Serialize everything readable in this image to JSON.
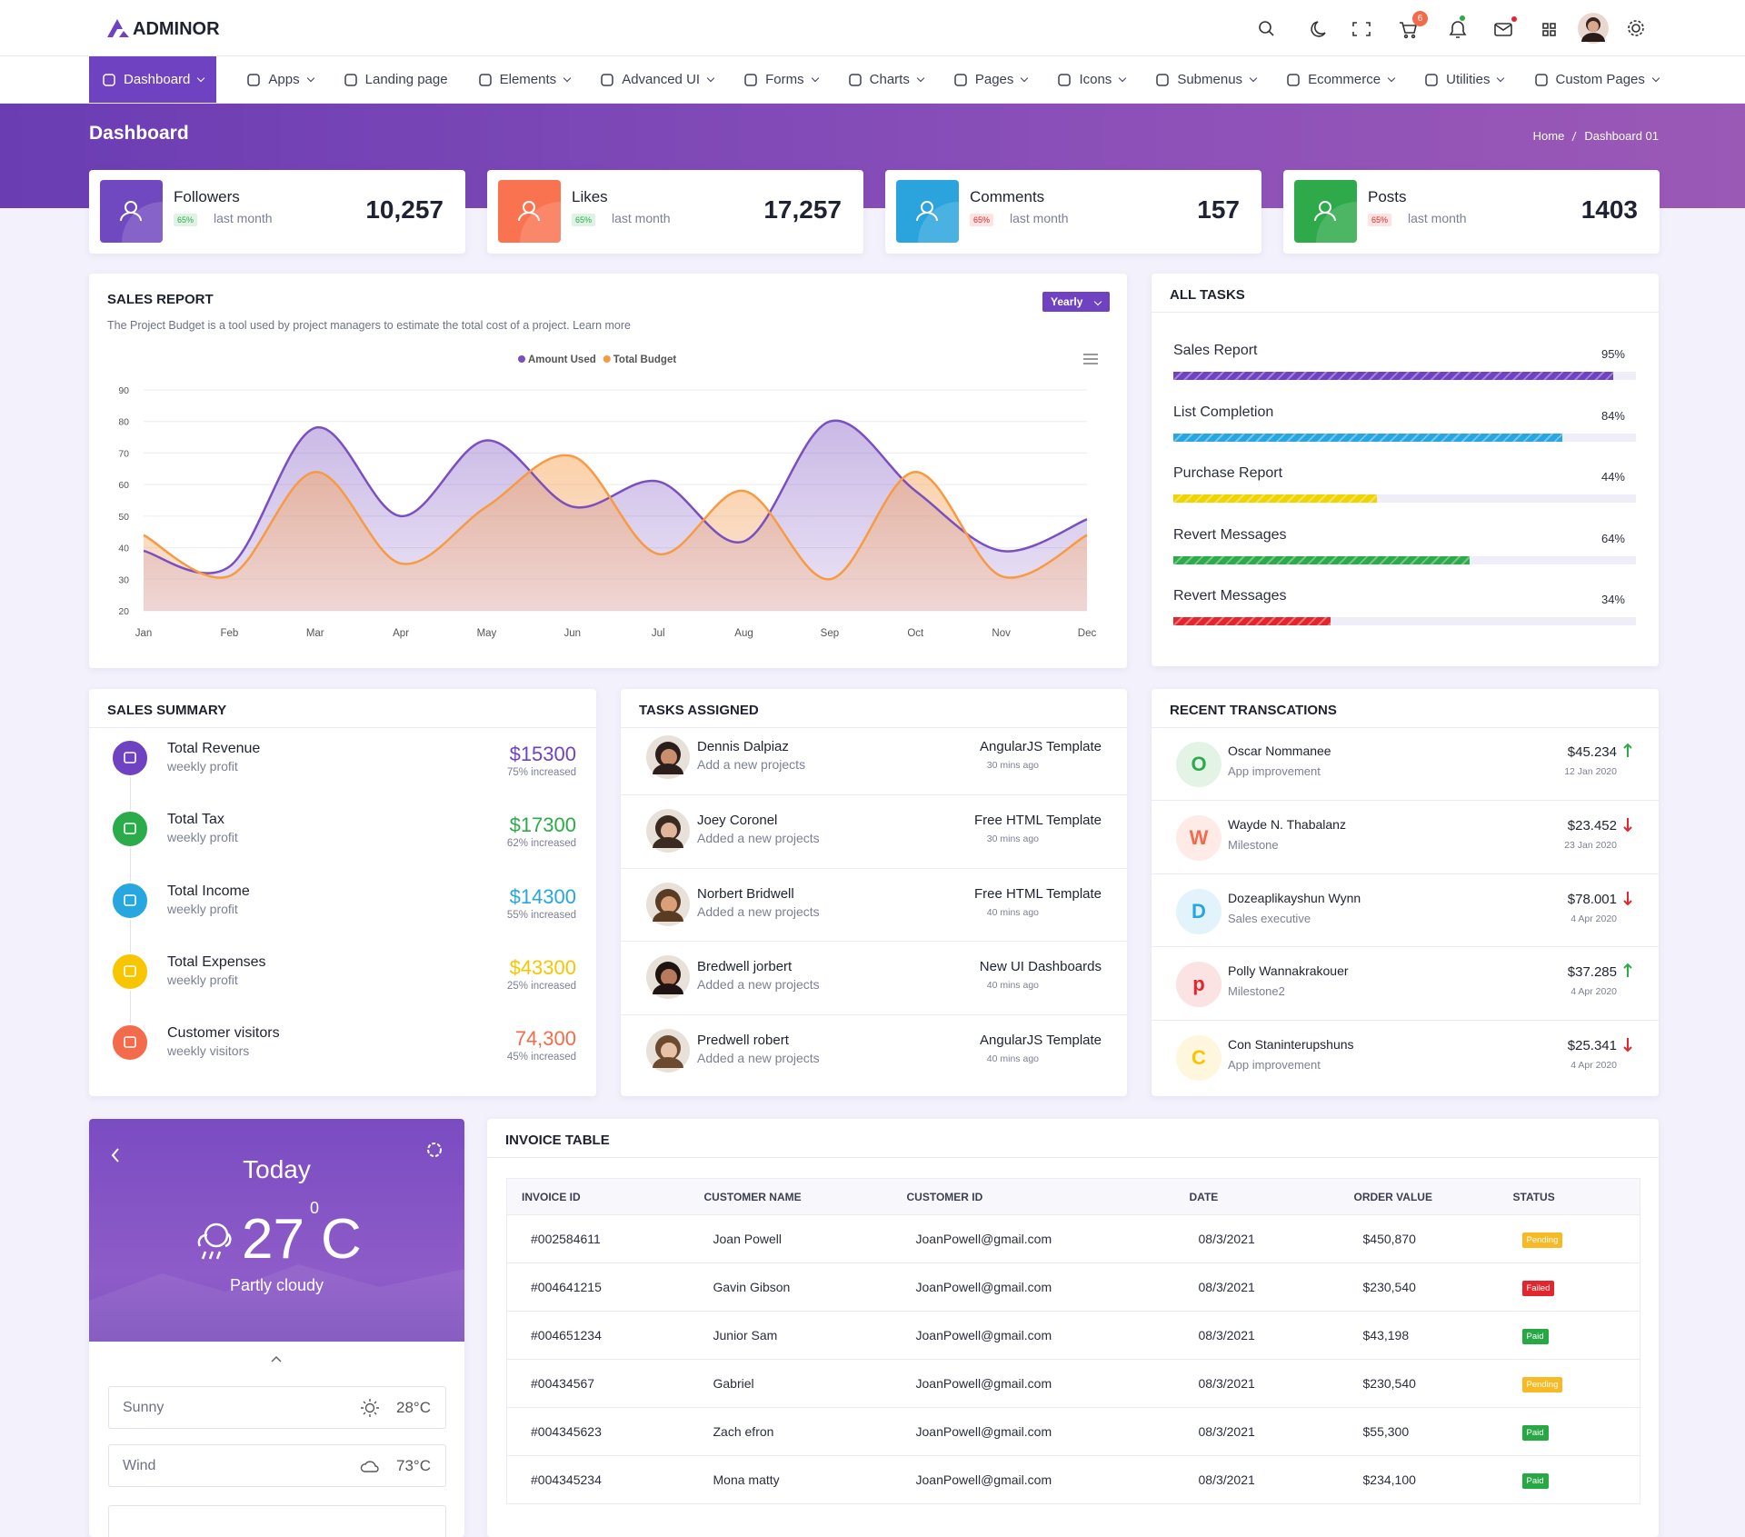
{
  "header": {
    "brand": "ADMINOR",
    "cart_badge": "6"
  },
  "nav": [
    {
      "label": "Dashboard",
      "dropdown": true,
      "active": true
    },
    {
      "label": "Apps",
      "dropdown": true
    },
    {
      "label": "Landing page",
      "dropdown": false
    },
    {
      "label": "Elements",
      "dropdown": true
    },
    {
      "label": "Advanced UI",
      "dropdown": true
    },
    {
      "label": "Forms",
      "dropdown": true
    },
    {
      "label": "Charts",
      "dropdown": true
    },
    {
      "label": "Pages",
      "dropdown": true
    },
    {
      "label": "Icons",
      "dropdown": true
    },
    {
      "label": "Submenus",
      "dropdown": true
    },
    {
      "label": "Ecommerce",
      "dropdown": true
    },
    {
      "label": "Utilities",
      "dropdown": true
    },
    {
      "label": "Custom Pages",
      "dropdown": true
    }
  ],
  "page": {
    "title": "Dashboard",
    "breadcrumb": [
      "Home",
      "Dashboard 01"
    ]
  },
  "stats": [
    {
      "label": "Followers",
      "badge": "65%",
      "badge_tone": "success",
      "period": "last month",
      "value": "10,257",
      "color": "#7048bf"
    },
    {
      "label": "Likes",
      "badge": "65%",
      "badge_tone": "success",
      "period": "last month",
      "value": "17,257",
      "color": "#f97350"
    },
    {
      "label": "Comments",
      "badge": "65%",
      "badge_tone": "danger",
      "period": "last month",
      "value": "157",
      "color": "#2ba4de"
    },
    {
      "label": "Posts",
      "badge": "65%",
      "badge_tone": "danger",
      "period": "last month",
      "value": "1403",
      "color": "#2eaa4b"
    }
  ],
  "sales_filter": "Yearly",
  "chart_data": {
    "type": "area",
    "title": "SALES REPORT",
    "subtitle": "The Project Budget is a tool used by project managers to estimate the total cost of a project. Learn more",
    "categories": [
      "Jan",
      "Feb",
      "Mar",
      "Apr",
      "May",
      "Jun",
      "Jul",
      "Aug",
      "Sep",
      "Oct",
      "Nov",
      "Dec"
    ],
    "series": [
      {
        "name": "Amount Used",
        "color": "#7a4fbf",
        "values": [
          39,
          34,
          78,
          50,
          74,
          53,
          61,
          42,
          80,
          58,
          39,
          49
        ]
      },
      {
        "name": "Total Budget",
        "color": "#f79b42",
        "values": [
          44,
          31,
          64,
          35,
          53,
          69,
          38,
          58,
          30,
          64,
          31,
          44
        ]
      }
    ],
    "ylim": [
      20,
      90
    ],
    "yticks": [
      20,
      30,
      40,
      50,
      60,
      70,
      80,
      90
    ],
    "grid": true
  },
  "tasks": {
    "title": "ALL TASKS",
    "items": [
      {
        "label": "Sales Report",
        "value": 95,
        "value_label": "95%",
        "color": "#6f42c1"
      },
      {
        "label": "List Completion",
        "value": 84,
        "value_label": "84%",
        "color": "#27a6e0"
      },
      {
        "label": "Purchase Report",
        "value": 44,
        "value_label": "44%",
        "color": "#f0d400"
      },
      {
        "label": "Revert Messages",
        "value": 64,
        "value_label": "64%",
        "color": "#2cab4b"
      },
      {
        "label": "Revert Messages",
        "value": 34,
        "value_label": "34%",
        "color": "#e3262d"
      }
    ]
  },
  "summary": {
    "title": "SALES SUMMARY",
    "items": [
      {
        "label": "Total Revenue",
        "sub": "weekly profit",
        "value": "$15300",
        "note": "75% increased",
        "color": "#6f42c1"
      },
      {
        "label": "Total Tax",
        "sub": "weekly profit",
        "value": "$17300",
        "note": "62% increased",
        "color": "#2cab4b"
      },
      {
        "label": "Total Income",
        "sub": "weekly profit",
        "value": "$14300",
        "note": "55% increased",
        "color": "#27a6e0"
      },
      {
        "label": "Total Expenses",
        "sub": "weekly profit",
        "value": "$43300",
        "note": "25% increased",
        "color": "#f7c600"
      },
      {
        "label": "Customer visitors",
        "sub": "weekly visitors",
        "value": "74,300",
        "note": "45% increased",
        "color": "#f46b4c"
      }
    ]
  },
  "assigned": {
    "title": "TASKS ASSIGNED",
    "items": [
      {
        "name": "Dennis Dalpiaz",
        "action": "Add a new projects",
        "project": "AngularJS Template",
        "time": "30 mins ago"
      },
      {
        "name": "Joey Coronel",
        "action": "Added a new projects",
        "project": "Free HTML Template",
        "time": "30 mins ago"
      },
      {
        "name": "Norbert Bridwell",
        "action": "Added a new projects",
        "project": "Free HTML Template",
        "time": "40 mins ago"
      },
      {
        "name": "Bredwell jorbert",
        "action": "Added a new projects",
        "project": "New UI Dashboards",
        "time": "40 mins ago"
      },
      {
        "name": "Predwell robert",
        "action": "Added a new projects",
        "project": "AngularJS Template",
        "time": "40 mins ago"
      }
    ]
  },
  "transactions": {
    "title": "RECENT TRANSCATIONS",
    "items": [
      {
        "initial": "O",
        "name": "Oscar Nommanee",
        "role": "App improvement",
        "amount": "$45.234",
        "date": "12 Jan 2020",
        "trend": "up",
        "color": "#2cab4b"
      },
      {
        "initial": "W",
        "name": "Wayde N. Thabalanz",
        "role": "Milestone",
        "amount": "$23.452",
        "date": "23 Jan 2020",
        "trend": "down",
        "color": "#f46b4c"
      },
      {
        "initial": "D",
        "name": "Dozeaplikayshun Wynn",
        "role": "Sales executive",
        "amount": "$78.001",
        "date": "4 Apr 2020",
        "trend": "down",
        "color": "#27a6e0"
      },
      {
        "initial": "p",
        "name": "Polly Wannakrakouer",
        "role": "Milestone2",
        "amount": "$37.285",
        "date": "4 Apr 2020",
        "trend": "up",
        "color": "#e3262d"
      },
      {
        "initial": "C",
        "name": "Con Staninterupshuns",
        "role": "App improvement",
        "amount": "$25.341",
        "date": "4 Apr 2020",
        "trend": "down",
        "color": "#f7c600"
      }
    ]
  },
  "weather": {
    "day": "Today",
    "temp": "27",
    "degree": "0",
    "unit": "C",
    "condition": "Partly cloudy",
    "rows": [
      {
        "label": "Sunny",
        "value": "28°C",
        "icon": "sun"
      },
      {
        "label": "Wind",
        "value": "73°C",
        "icon": "cloud"
      }
    ]
  },
  "invoice": {
    "title": "INVOICE TABLE",
    "columns": [
      "INVOICE ID",
      "CUSTOMER NAME",
      "CUSTOMER ID",
      "DATE",
      "ORDER VALUE",
      "STATUS"
    ],
    "rows": [
      [
        "#002584611",
        "Joan Powell",
        "JoanPowell@gmail.com",
        "08/3/2021",
        "$450,870",
        "Pending"
      ],
      [
        "#004641215",
        "Gavin Gibson",
        "JoanPowell@gmail.com",
        "08/3/2021",
        "$230,540",
        "Failed"
      ],
      [
        "#004651234",
        "Junior Sam",
        "JoanPowell@gmail.com",
        "08/3/2021",
        "$43,198",
        "Paid"
      ],
      [
        "#00434567",
        "Gabriel",
        "JoanPowell@gmail.com",
        "08/3/2021",
        "$230,540",
        "Pending"
      ],
      [
        "#004345623",
        "Zach efron",
        "JoanPowell@gmail.com",
        "08/3/2021",
        "$55,300",
        "Paid"
      ],
      [
        "#004345234",
        "Mona matty",
        "JoanPowell@gmail.com",
        "08/3/2021",
        "$234,100",
        "Paid"
      ]
    ],
    "status_colors": {
      "Pending": "#f7b924",
      "Failed": "#e3262d",
      "Paid": "#28a745"
    }
  }
}
